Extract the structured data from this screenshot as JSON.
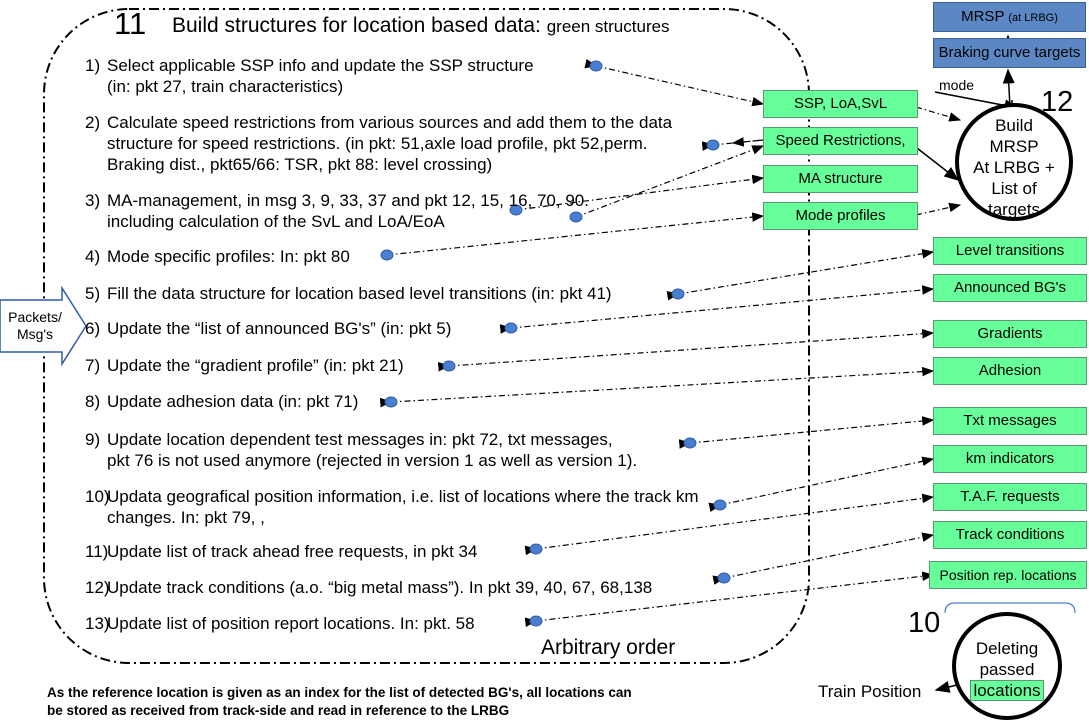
{
  "process": {
    "number": "11",
    "title": "Build structures for location based data:",
    "title_suffix": "green structures",
    "order_note": "Arbitrary order"
  },
  "steps": [
    {
      "num": "1)",
      "lines": [
        "Select applicable SSP info and update the SSP structure",
        "(in: pkt 27, train characteristics)"
      ]
    },
    {
      "num": "2)",
      "lines": [
        "Calculate speed restrictions from various sources and add them to the data",
        "structure for speed restrictions. (in pkt: 51,axle load profile, pkt 52,perm.",
        "Braking dist., pkt65/66: TSR, pkt 88: level crossing)"
      ]
    },
    {
      "num": "3)",
      "lines": [
        "MA-management, in msg 3, 9, 33, 37 and pkt 12, 15, 16, 70, 90.",
        "including calculation of the SvL and LoA/EoA"
      ]
    },
    {
      "num": "4)",
      "lines": [
        "Mode specific profiles: In: pkt 80"
      ]
    },
    {
      "num": "5)",
      "lines": [
        "Fill the data structure for location based level transitions (in: pkt 41)"
      ]
    },
    {
      "num": "6)",
      "lines": [
        "Update the “list of announced BG's” (in: pkt 5)"
      ]
    },
    {
      "num": "7)",
      "lines": [
        "Update the “gradient profile” (in: pkt 21)"
      ]
    },
    {
      "num": "8)",
      "lines": [
        "Update adhesion data (in: pkt 71)"
      ]
    },
    {
      "num": "9)",
      "lines": [
        "Update location dependent test messages in: pkt 72, txt messages,",
        "pkt 76 is not used anymore (rejected in version 1 as well as version 1)."
      ]
    },
    {
      "num": "10)",
      "lines": [
        "Updata geografical position information, i.e. list of locations where the track km",
        "changes. In: pkt 79, ,"
      ]
    },
    {
      "num": "11)",
      "lines": [
        "Update list of track ahead free requests, in pkt 34"
      ]
    },
    {
      "num": "12)",
      "lines": [
        "Update track conditions (a.o. “big metal mass”). In pkt 39, 40, 67, 68,138"
      ]
    },
    {
      "num": "13)",
      "lines": [
        "Update list of position report locations. In: pkt. 58"
      ]
    }
  ],
  "input_arrow": {
    "line1": "Packets/",
    "line2": "Msg's"
  },
  "structures_left": [
    "SSP, LoA,SvL",
    "Speed Restrictions,",
    "MA structure",
    "Mode profiles"
  ],
  "structures_right": [
    "Level transitions",
    "Announced BG's",
    "Gradients",
    "Adhesion",
    "Txt messages",
    "km indicators",
    "T.A.F. requests",
    "Track conditions",
    "Position rep. locations"
  ],
  "outputs": {
    "mrsp": "MRSP",
    "mrsp_small": "(at LRBG)",
    "braking": "Braking curve targets",
    "mode_label": "mode"
  },
  "process12": {
    "number": "12",
    "lines": [
      "Build",
      "MRSP",
      "At LRBG +",
      "List of",
      "targets"
    ]
  },
  "process10": {
    "number": "10",
    "line1": "Deleting",
    "line2": "passed",
    "line3": "locations"
  },
  "train_position": "Train Position",
  "footnote": {
    "line1": "As the reference location is given as an index for the list of detected BG's, all locations can",
    "line2": "be stored as received from track-side and read in reference to the LRBG"
  },
  "colors": {
    "green_box": "#66ff99",
    "blue_box": "#5b87c5",
    "node": "#4a7fcf"
  }
}
